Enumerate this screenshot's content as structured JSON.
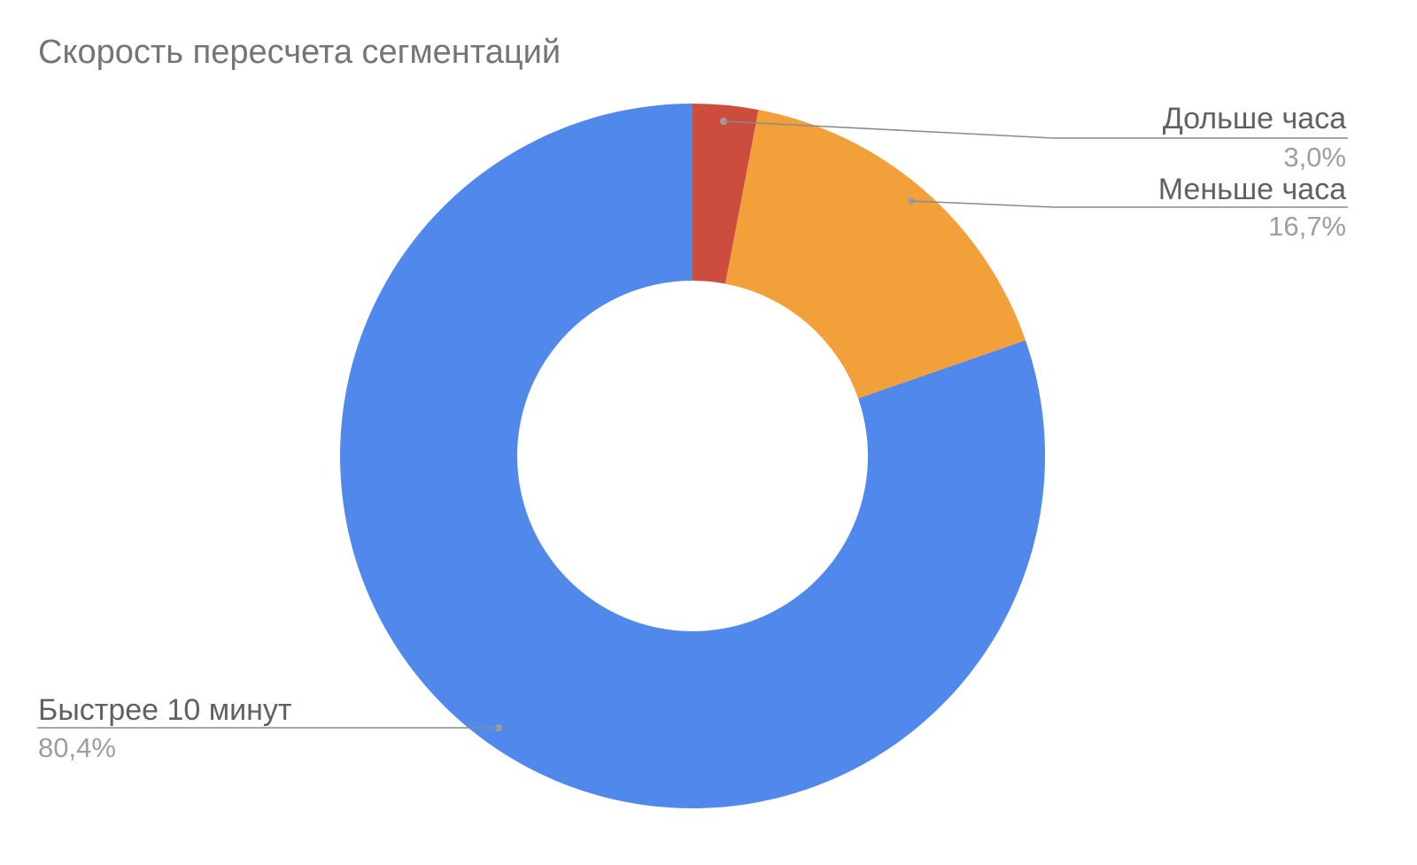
{
  "chart_data": {
    "type": "pie",
    "variant": "donut",
    "title": "Скорость пересчета сегментаций",
    "slices": [
      {
        "label": "Дольше часа",
        "value": 3.0,
        "value_label": "3,0%",
        "color": "#cc4d3e"
      },
      {
        "label": "Меньше часа",
        "value": 16.7,
        "value_label": "16,7%",
        "color": "#f2a03a"
      },
      {
        "label": "Быстрее 10 минут",
        "value": 80.4,
        "value_label": "80,4%",
        "color": "#5088ec"
      }
    ],
    "legend": "none",
    "label_color": "#616161",
    "value_label_color": "#9e9e9e",
    "leader_color": "#8a8a8a"
  }
}
